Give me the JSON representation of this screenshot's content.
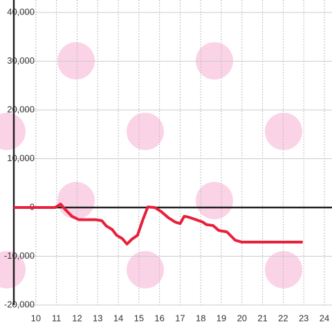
{
  "chart_data": {
    "type": "line",
    "x": [
      8.93,
      10.93,
      11.2,
      11.4,
      11.75,
      12.08,
      12.92,
      13.2,
      13.42,
      13.7,
      13.92,
      14.2,
      14.42,
      14.66,
      14.93,
      15.2,
      15.43,
      15.77,
      16.1,
      16.43,
      16.77,
      17.0,
      17.2,
      17.43,
      17.77,
      18.1,
      18.27,
      18.6,
      18.87,
      19.27,
      19.67,
      20.0,
      22.95
    ],
    "series": [
      {
        "color": "#e8203a",
        "values": [
          0,
          0,
          700,
          -300,
          -1800,
          -2500,
          -2500,
          -2700,
          -3800,
          -4500,
          -5700,
          -6400,
          -7500,
          -6500,
          -5700,
          -2400,
          100,
          0,
          -900,
          -2100,
          -3000,
          -3300,
          -1800,
          -2000,
          -2500,
          -3000,
          -3500,
          -3700,
          -4700,
          -5000,
          -6700,
          -7100,
          -7100
        ]
      }
    ],
    "xlim": [
      8.93,
      24.37
    ],
    "xticks": [
      10,
      11,
      12,
      13,
      14,
      15,
      16,
      17,
      18,
      19,
      20,
      21,
      22,
      23,
      24
    ],
    "ylim": [
      -20000,
      40000
    ],
    "yticks": [
      {
        "value": 40000,
        "label": "40,000"
      },
      {
        "value": 30000,
        "label": "30,000"
      },
      {
        "value": 20000,
        "label": "20,000"
      },
      {
        "value": 10000,
        "label": "10,000"
      },
      0,
      {
        "value": -10000,
        "label": "-10,000"
      },
      {
        "value": -20000,
        "label": "-20,000"
      }
    ],
    "grid": true
  }
}
